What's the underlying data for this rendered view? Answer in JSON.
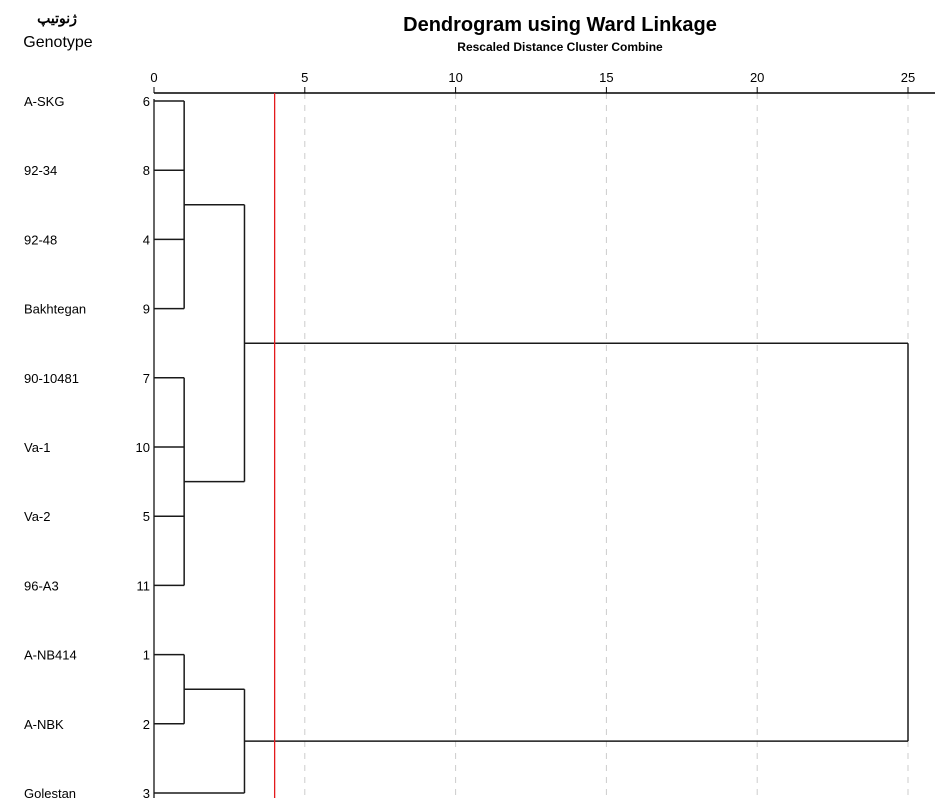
{
  "header": {
    "title": "Dendrogram using Ward Linkage",
    "subtitle": "Rescaled Distance Cluster Combine",
    "column_label_fa": "ژنوتیپ",
    "column_label": "Genotype"
  },
  "axis": {
    "range": [
      0,
      25
    ],
    "ticks": [
      0,
      5,
      10,
      15,
      20,
      25
    ],
    "grid": "dashed vertical"
  },
  "cut_line": {
    "distance": 4,
    "color": "#e31a1c"
  },
  "leaves": [
    {
      "label": "A-SKG",
      "case": "6"
    },
    {
      "label": "92-34",
      "case": "8"
    },
    {
      "label": "92-48",
      "case": "4"
    },
    {
      "label": "Bakhtegan",
      "case": "9"
    },
    {
      "label": "90-10481",
      "case": "7"
    },
    {
      "label": "Va-1",
      "case": "10"
    },
    {
      "label": "Va-2",
      "case": "5"
    },
    {
      "label": "96-A3",
      "case": "11"
    },
    {
      "label": "A-NB414",
      "case": "1"
    },
    {
      "label": "A-NBK",
      "case": "2"
    },
    {
      "label": "Golestan",
      "case": "3"
    }
  ],
  "merges": [
    {
      "id": "c1",
      "children": [
        "L0",
        "L1",
        "L2",
        "L3"
      ],
      "distance": 1
    },
    {
      "id": "c2",
      "children": [
        "L4",
        "L5",
        "L6",
        "L7"
      ],
      "distance": 1
    },
    {
      "id": "c3",
      "children": [
        "L8",
        "L9"
      ],
      "distance": 1
    },
    {
      "id": "c4",
      "children": [
        "c1",
        "c2"
      ],
      "distance": 3
    },
    {
      "id": "c5",
      "children": [
        "c3",
        "L10"
      ],
      "distance": 3
    },
    {
      "id": "c6",
      "children": [
        "c4",
        "c5"
      ],
      "distance": 25
    }
  ]
}
